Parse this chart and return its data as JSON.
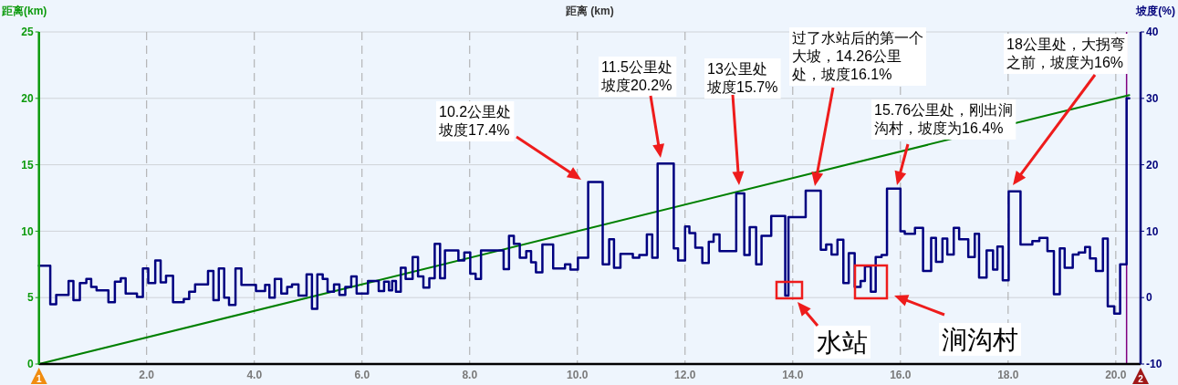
{
  "chart_data": {
    "type": "line",
    "xlabel": "距离 (km)",
    "ylabel": "距离(km)",
    "y2label": "坡度(%)",
    "xlim": [
      0,
      20.46
    ],
    "xticks": [
      {
        "value": 2,
        "label": "2.0"
      },
      {
        "value": 4,
        "label": "4.0"
      },
      {
        "value": 6,
        "label": "6.0"
      },
      {
        "value": 8,
        "label": "8.0"
      },
      {
        "value": 10,
        "label": "10.0"
      },
      {
        "value": 12,
        "label": "12.0"
      },
      {
        "value": 14,
        "label": "14.0"
      },
      {
        "value": 16,
        "label": "16.0"
      },
      {
        "value": 18,
        "label": "18.0"
      },
      {
        "value": 20,
        "label": "20.0"
      }
    ],
    "ylim": [
      0,
      25
    ],
    "yticks": [
      0,
      5,
      10,
      15,
      20,
      25
    ],
    "y2lim": [
      -10,
      40
    ],
    "y2ticks": [
      -10,
      0,
      10,
      20,
      30,
      40
    ],
    "grid": true,
    "series": [
      {
        "color": "#008000",
        "x": [
          0,
          20.25
        ],
        "values": [
          0,
          20.25
        ]
      },
      {
        "type": "step",
        "axis": "y2",
        "color": "#000080",
        "x": [
          0,
          0.21,
          0.32,
          0.55,
          0.64,
          0.76,
          0.88,
          0.97,
          1.07,
          1.29,
          1.41,
          1.52,
          1.61,
          1.82,
          1.93,
          2.03,
          2.16,
          2.26,
          2.36,
          2.49,
          2.69,
          2.79,
          2.9,
          3.14,
          3.24,
          3.34,
          3.44,
          3.53,
          3.65,
          3.76,
          4.03,
          4.2,
          4.28,
          4.38,
          4.5,
          4.61,
          4.7,
          4.82,
          4.97,
          5.07,
          5.17,
          5.27,
          5.36,
          5.48,
          5.58,
          5.69,
          5.8,
          5.9,
          6.11,
          6.31,
          6.41,
          6.5,
          6.56,
          6.63,
          6.72,
          6.81,
          6.94,
          7.04,
          7.14,
          7.25,
          7.35,
          7.45,
          7.54,
          7.79,
          7.9,
          8.01,
          8.11,
          8.21,
          8.63,
          8.73,
          8.82,
          8.93,
          9.05,
          9.14,
          9.23,
          9.35,
          9.55,
          9.77,
          9.87,
          10.01,
          10.2,
          10.47,
          10.59,
          10.68,
          10.8,
          11.03,
          11.15,
          11.29,
          11.39,
          11.49,
          11.79,
          11.87,
          12.0,
          12.08,
          12.19,
          12.32,
          12.44,
          12.53,
          12.64,
          12.95,
          13.1,
          13.2,
          13.32,
          13.42,
          13.6,
          13.86,
          13.92,
          14.24,
          14.52,
          14.62,
          14.72,
          14.83,
          14.94,
          15.04,
          15.15,
          15.26,
          15.34,
          15.45,
          15.54,
          15.65,
          15.75,
          16.0,
          16.08,
          16.27,
          16.42,
          16.57,
          16.66,
          16.78,
          16.87,
          16.99,
          17.09,
          17.26,
          17.38,
          17.46,
          17.6,
          17.72,
          17.8,
          17.9,
          18.01,
          18.23,
          18.45,
          18.58,
          18.73,
          18.85,
          18.96,
          19.05,
          19.2,
          19.31,
          19.43,
          19.52,
          19.63,
          19.76,
          19.85,
          19.97,
          20.08,
          20.2,
          20.25
        ],
        "values": [
          4.8,
          -1.0,
          0.4,
          2.5,
          -0.4,
          2.2,
          2.8,
          1.6,
          1.1,
          -0.7,
          2.4,
          2.9,
          0.6,
          0.1,
          4.4,
          2.2,
          5.6,
          2.3,
          3.3,
          -0.7,
          -0.2,
          0.9,
          2.0,
          4.0,
          -0.4,
          4.4,
          0.0,
          -1.1,
          4.4,
          1.9,
          1.0,
          1.9,
          0.0,
          2.8,
          0.6,
          1.6,
          2.0,
          0.3,
          3.5,
          -1.7,
          3.5,
          2.8,
          0.9,
          2.0,
          0.4,
          1.6,
          3.2,
          0.6,
          2.5,
          1.0,
          2.4,
          1.1,
          2.5,
          0.9,
          4.5,
          2.8,
          6.1,
          3.2,
          1.5,
          2.9,
          8.1,
          2.9,
          7.1,
          5.6,
          6.8,
          3.6,
          2.8,
          7.1,
          4.3,
          9.3,
          8.1,
          6.0,
          7.0,
          5.3,
          3.8,
          8.0,
          4.4,
          5.0,
          4.2,
          6.0,
          17.4,
          5.0,
          8.8,
          4.5,
          6.6,
          6.0,
          6.4,
          9.5,
          6.0,
          20.2,
          7.4,
          5.6,
          10.7,
          9.7,
          7.5,
          5.2,
          8.4,
          9.5,
          7.0,
          15.7,
          6.4,
          10.6,
          5.0,
          9.3,
          12.3,
          0.3,
          12.1,
          16.1,
          7.2,
          8.0,
          6.5,
          8.7,
          2.2,
          6.7,
          1.6,
          2.5,
          4.7,
          0.9,
          6.1,
          6.4,
          16.4,
          10.0,
          9.6,
          10.5,
          4.0,
          9.0,
          5.4,
          8.9,
          6.5,
          10.5,
          8.8,
          6.1,
          9.6,
          3.0,
          7.1,
          4.2,
          7.7,
          2.6,
          16.0,
          8.0,
          8.5,
          9.0,
          7.0,
          0.5,
          7.4,
          4.5,
          6.5,
          6.8,
          7.6,
          5.9,
          4.0,
          8.9,
          -1.3,
          -2.4,
          5.0,
          30.0,
          30.0
        ]
      }
    ],
    "ref_lines": [
      {
        "axis": "x",
        "value": 20.2,
        "color": "#800080"
      }
    ],
    "annotations": [
      "10.2公里处坡度17.4%",
      "11.5公里处坡度20.2%",
      "13公里处坡度15.7%",
      "过了水站后的第一个大坡，14.26公里处，坡度16.1%",
      "15.76公里处，刚出涧沟村，坡度为16.4%",
      "18公里处，大拐弯之前，坡度为16%",
      "水站",
      "涧沟村",
      "1",
      "2"
    ]
  }
}
